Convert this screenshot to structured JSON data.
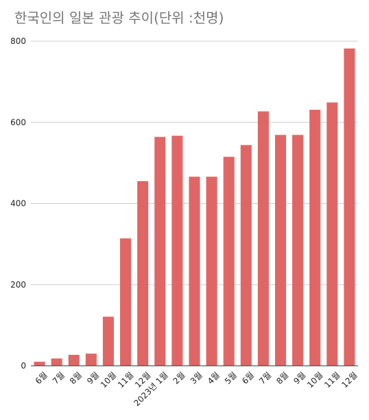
{
  "chart_data": {
    "type": "bar",
    "title": "한국인의 일본 관광 추이(단위 :천명)",
    "categories": [
      "6월",
      "7월",
      "8월",
      "9월",
      "10월",
      "11월",
      "12월",
      "2023년 1월",
      "2월",
      "3월",
      "4월",
      "5월",
      "6월",
      "7월",
      "8월",
      "9월",
      "10월",
      "11월",
      "12월"
    ],
    "values": [
      10,
      18,
      27,
      30,
      121,
      314,
      455,
      564,
      567,
      466,
      466,
      515,
      544,
      627,
      569,
      569,
      631,
      649,
      782
    ],
    "ylim": [
      0,
      800
    ],
    "yticks": [
      0,
      200,
      400,
      600,
      800
    ],
    "grid": true,
    "legend": "none",
    "bar_color": "#e06666",
    "grid_color": "#cccccc",
    "axis_color": "#333333"
  }
}
